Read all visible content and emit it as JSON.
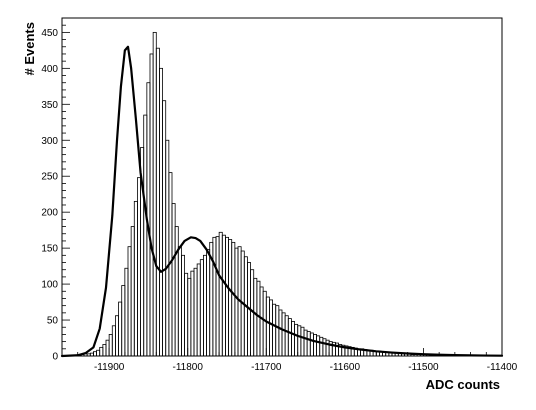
{
  "chart_data": {
    "type": "histogram",
    "title": "",
    "xlabel": "ADC counts",
    "ylabel": "# Events",
    "xlim": [
      -11960,
      -11400
    ],
    "ylim": [
      0,
      470
    ],
    "x_ticks": [
      -11900,
      -11800,
      -11700,
      -11600,
      -11500,
      -11400
    ],
    "y_ticks": [
      0,
      50,
      100,
      150,
      200,
      250,
      300,
      350,
      400,
      450
    ],
    "grid": false,
    "legend": "none",
    "series": [
      {
        "kind": "histogram",
        "bin_width": 4,
        "bin_edges_start": -11960,
        "values": [
          0,
          0,
          0,
          1,
          1,
          2,
          2,
          3,
          3,
          4,
          6,
          8,
          12,
          16,
          22,
          30,
          42,
          56,
          75,
          98,
          122,
          152,
          180,
          215,
          248,
          290,
          335,
          380,
          420,
          450,
          428,
          400,
          355,
          300,
          255,
          212,
          180,
          152,
          140,
          115,
          108,
          118,
          122,
          128,
          134,
          140,
          148,
          158,
          165,
          166,
          172,
          168,
          165,
          162,
          158,
          150,
          152,
          146,
          138,
          130,
          120,
          108,
          104,
          96,
          90,
          82,
          78,
          72,
          70,
          64,
          60,
          56,
          52,
          48,
          44,
          42,
          40,
          36,
          34,
          32,
          30,
          28,
          26,
          24,
          22,
          20,
          19,
          18,
          16,
          15,
          14,
          13,
          12,
          11,
          10,
          10,
          9,
          8,
          8,
          7,
          6,
          6,
          5,
          5,
          5,
          4,
          4,
          4,
          3,
          3,
          3,
          2,
          2,
          2,
          2,
          2,
          2,
          1,
          1,
          1,
          1,
          1,
          1,
          1,
          1,
          1,
          1,
          1,
          1,
          1,
          0,
          1,
          0,
          0,
          0,
          0,
          0,
          0
        ]
      },
      {
        "kind": "fit",
        "style": "smooth line",
        "x": [
          -11960,
          -11940,
          -11930,
          -11920,
          -11912,
          -11904,
          -11896,
          -11890,
          -11885,
          -11880,
          -11876,
          -11872,
          -11866,
          -11860,
          -11852,
          -11846,
          -11840,
          -11834,
          -11828,
          -11820,
          -11812,
          -11804,
          -11796,
          -11790,
          -11784,
          -11776,
          -11768,
          -11760,
          -11748,
          -11736,
          -11724,
          -11712,
          -11700,
          -11680,
          -11660,
          -11640,
          -11620,
          -11600,
          -11580,
          -11560,
          -11540,
          -11520,
          -11500,
          -11480,
          -11460,
          -11440,
          -11420,
          -11400
        ],
        "y": [
          0,
          1,
          4,
          12,
          38,
          95,
          195,
          300,
          375,
          425,
          430,
          400,
          330,
          255,
          190,
          150,
          125,
          117,
          121,
          133,
          148,
          160,
          165,
          164,
          160,
          148,
          132,
          112,
          94,
          79,
          68,
          57,
          48,
          37,
          28,
          21,
          16,
          12,
          9,
          6.5,
          4.8,
          3.5,
          2.5,
          1.8,
          1.3,
          0.9,
          0.6,
          0.4
        ]
      }
    ]
  }
}
